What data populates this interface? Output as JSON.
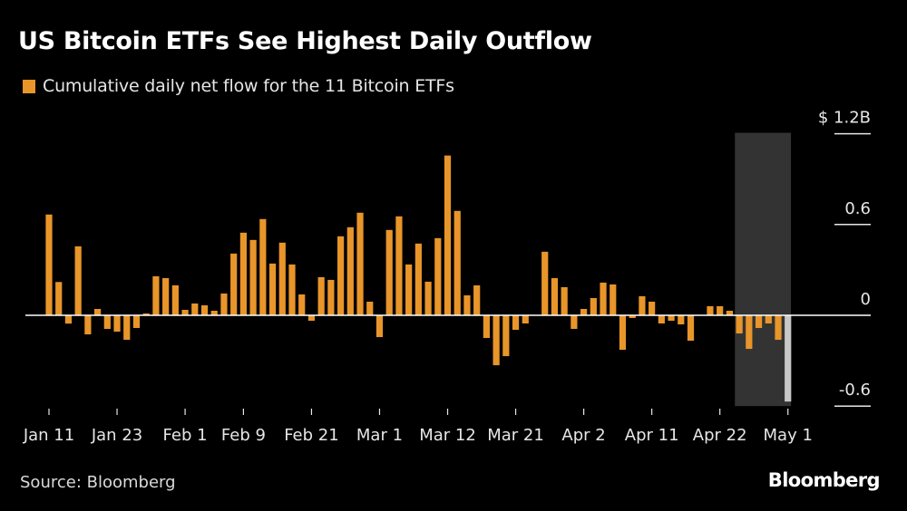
{
  "header": {
    "title": "US Bitcoin ETFs See Highest Daily Outflow"
  },
  "footer": {
    "source": "Source: Bloomberg",
    "brand": "Bloomberg"
  },
  "colors": {
    "background": "#000000",
    "bar": "#E8952A",
    "highlight_bar": "#C8C8C8",
    "highlight_band": "#333333",
    "axis": "#FFFFFF",
    "text": "#E6E6E6"
  },
  "chart_data": {
    "type": "bar",
    "title": "US Bitcoin ETFs See Highest Daily Outflow",
    "legend": [
      {
        "name": "Cumulative daily net flow for the 11 Bitcoin ETFs",
        "color": "#E8952A"
      }
    ],
    "legend_position": "top-left",
    "xlabel": "",
    "ylabel": "",
    "y_unit": "$B",
    "ylim": [
      -0.6,
      1.2
    ],
    "yticks": [
      {
        "value": 1.2,
        "label": "$ 1.2B"
      },
      {
        "value": 0.6,
        "label": "0.6"
      },
      {
        "value": 0,
        "label": "0"
      },
      {
        "value": -0.6,
        "label": "-0.6"
      }
    ],
    "xticks": [
      {
        "index": 0,
        "label": "Jan 11"
      },
      {
        "index": 7,
        "label": "Jan 23"
      },
      {
        "index": 14,
        "label": "Feb 1"
      },
      {
        "index": 20,
        "label": "Feb 9"
      },
      {
        "index": 27,
        "label": "Feb 21"
      },
      {
        "index": 34,
        "label": "Mar 1"
      },
      {
        "index": 41,
        "label": "Mar 12"
      },
      {
        "index": 48,
        "label": "Mar 21"
      },
      {
        "index": 55,
        "label": "Apr 2"
      },
      {
        "index": 62,
        "label": "Apr 11"
      },
      {
        "index": 69,
        "label": "Apr 22"
      },
      {
        "index": 76,
        "label": "May 1"
      }
    ],
    "grid": false,
    "highlight_range": {
      "start_index": 71,
      "end_index": 76,
      "highlight_bar_index": 76
    },
    "values": [
      0.666,
      0.22,
      -0.055,
      0.456,
      -0.126,
      0.042,
      -0.09,
      -0.108,
      -0.162,
      -0.084,
      0.012,
      0.258,
      0.246,
      0.198,
      0.036,
      0.078,
      0.066,
      0.03,
      0.144,
      0.408,
      0.546,
      0.498,
      0.636,
      0.342,
      0.48,
      0.336,
      0.138,
      -0.036,
      0.252,
      0.234,
      0.522,
      0.582,
      0.678,
      0.09,
      -0.144,
      0.564,
      0.654,
      0.336,
      0.474,
      0.222,
      0.51,
      1.056,
      0.69,
      0.132,
      0.198,
      -0.15,
      -0.33,
      -0.27,
      -0.096,
      -0.054,
      0.0,
      0.42,
      0.246,
      0.186,
      -0.09,
      0.042,
      0.114,
      0.216,
      0.204,
      -0.228,
      -0.018,
      0.126,
      0.09,
      -0.054,
      -0.036,
      -0.06,
      -0.168,
      0.0,
      0.06,
      0.06,
      0.03,
      -0.12,
      -0.222,
      -0.084,
      -0.054,
      -0.162,
      -0.57
    ]
  }
}
